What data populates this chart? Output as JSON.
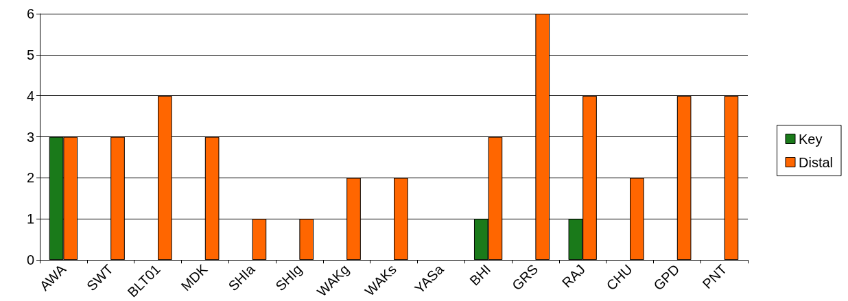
{
  "chart_data": {
    "type": "bar",
    "categories": [
      "AWA",
      "SWT",
      "BLT01",
      "MDK",
      "SHIa",
      "SHIg",
      "WAKg",
      "WAKs",
      "YASa",
      "BHI",
      "GRS",
      "RAJ",
      "CHU",
      "GPD",
      "PNT"
    ],
    "series": [
      {
        "name": "Key",
        "color": "#1a7a1a",
        "values": [
          3,
          0,
          0,
          0,
          0,
          0,
          0,
          0,
          0,
          1,
          0,
          1,
          0,
          0,
          0
        ]
      },
      {
        "name": "Distal",
        "color": "#ff6600",
        "values": [
          3,
          3,
          4,
          3,
          1,
          1,
          2,
          2,
          0,
          3,
          6,
          4,
          2,
          4,
          4
        ]
      }
    ],
    "ylim": [
      0,
      6
    ],
    "yticks": [
      0,
      1,
      2,
      3,
      4,
      5,
      6
    ],
    "grid": "y",
    "legend": "right"
  }
}
